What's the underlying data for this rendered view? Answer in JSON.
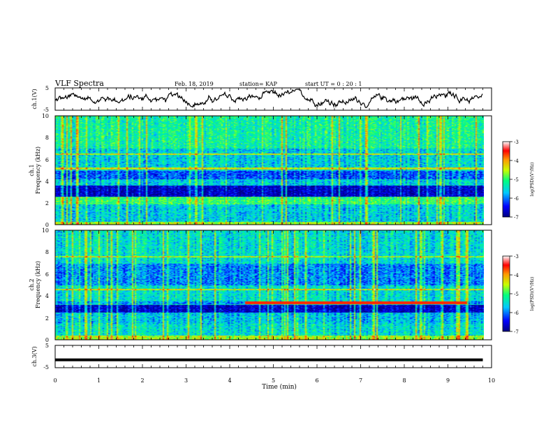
{
  "header": {
    "title": "VLF Spectra",
    "date": "Feb. 18, 2019",
    "station": "station= KAP",
    "start": "start  UT =   0 : 20 : 1"
  },
  "chart_data": [
    {
      "type": "line",
      "panel": "ch1-waveform",
      "ylabel": "ch.1(V)",
      "ylim": [
        -5,
        5
      ],
      "yticks": [
        "5",
        "-5"
      ],
      "xlim": [
        0,
        10
      ],
      "color": "#000000"
    },
    {
      "type": "heatmap",
      "panel": "ch1-spectrogram",
      "ylabel_line1": "ch.1",
      "ylabel_line2": "Frequency (kHz)",
      "ylim": [
        0,
        10
      ],
      "yticks": [
        "0",
        "2",
        "4",
        "6",
        "8",
        "10"
      ],
      "xlim": [
        0,
        10
      ],
      "colorbar": {
        "label": "log(PSD)(V²/Hz)",
        "range": [
          -7,
          -3
        ],
        "ticks": [
          "-3",
          "-4",
          "-5",
          "-6",
          "-7"
        ],
        "colors": [
          "#000080",
          "#0000ff",
          "#00c8ff",
          "#00ff80",
          "#c8ff00",
          "#ff9900",
          "#ff0000",
          "#ffffff"
        ]
      }
    },
    {
      "type": "heatmap",
      "panel": "ch2-spectrogram",
      "ylabel_line1": "ch.2",
      "ylabel_line2": "Frequency (kHz)",
      "ylim": [
        0,
        10
      ],
      "yticks": [
        "0",
        "2",
        "4",
        "6",
        "8",
        "10"
      ],
      "xlim": [
        0,
        10
      ],
      "colorbar": {
        "label": "log(PSD)(V²/Hz)",
        "range": [
          -7,
          -3
        ],
        "ticks": [
          "-3",
          "-4",
          "-5",
          "-6",
          "-7"
        ],
        "colors": [
          "#000080",
          "#0000ff",
          "#00c8ff",
          "#00ff80",
          "#c8ff00",
          "#ff9900",
          "#ff0000",
          "#ffffff"
        ]
      }
    },
    {
      "type": "line",
      "panel": "ch3-waveform",
      "ylabel": "ch.3(V)",
      "ylim": [
        -5,
        5
      ],
      "yticks": [
        "5",
        "-5"
      ],
      "xlim": [
        0,
        10
      ],
      "constant_value": -1.5,
      "color": "#000000"
    }
  ],
  "xaxis": {
    "label": "Time (min)",
    "ticks": [
      "0",
      "1",
      "2",
      "3",
      "4",
      "5",
      "6",
      "7",
      "8",
      "9",
      "10"
    ],
    "data_end": 9.8
  }
}
